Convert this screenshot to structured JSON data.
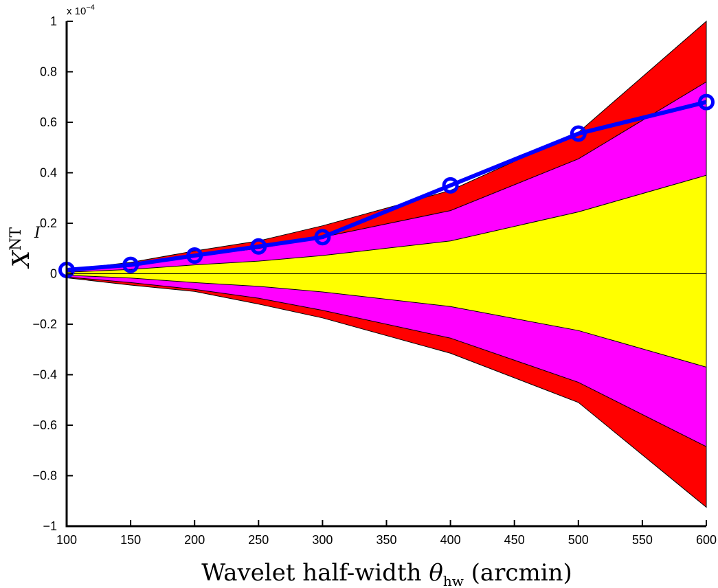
{
  "chart_data": {
    "type": "area",
    "title": "",
    "xlabel_main": "Wavelet half-width ",
    "xlabel_symbol": "θ",
    "xlabel_subscript": "hw",
    "xlabel_units": " (arcmin)",
    "ylabel_symbol": "X",
    "ylabel_superscript": "NT",
    "ylabel_subscript": "I",
    "y_multiplier_base": "x 10",
    "y_multiplier_exp": "−4",
    "xlim": [
      100,
      600
    ],
    "ylim": [
      -1.0,
      1.0
    ],
    "x_ticks": [
      100,
      150,
      200,
      250,
      300,
      350,
      400,
      450,
      500,
      550,
      600
    ],
    "x_tick_labels": [
      "100",
      "150",
      "200",
      "250",
      "300",
      "350",
      "400",
      "450",
      "500",
      "550",
      "600"
    ],
    "y_ticks": [
      -1.0,
      -0.8,
      -0.6,
      -0.4,
      -0.2,
      0,
      0.2,
      0.4,
      0.6,
      0.8,
      1.0
    ],
    "y_tick_labels": [
      "−1",
      "−0.8",
      "−0.6",
      "−0.4",
      "−0.2",
      "0",
      "0.2",
      "0.4",
      "0.6",
      "0.8",
      "1"
    ],
    "grid": false,
    "x": [
      100,
      150,
      200,
      250,
      300,
      400,
      500,
      600
    ],
    "bands": [
      {
        "color": "#ff0000",
        "upper": [
          0.016,
          0.045,
          0.09,
          0.13,
          0.19,
          0.33,
          0.56,
          1.0
        ],
        "lower": [
          -0.016,
          -0.045,
          -0.07,
          -0.12,
          -0.175,
          -0.315,
          -0.51,
          -0.925
        ]
      },
      {
        "color": "#ff00ff",
        "upper": [
          0.013,
          0.035,
          0.07,
          0.1,
          0.145,
          0.25,
          0.455,
          0.76
        ],
        "lower": [
          -0.013,
          -0.035,
          -0.062,
          -0.097,
          -0.145,
          -0.255,
          -0.43,
          -0.685
        ]
      },
      {
        "color": "#ffff00",
        "upper": [
          0.006,
          0.017,
          0.035,
          0.05,
          0.072,
          0.13,
          0.245,
          0.39
        ],
        "lower": [
          -0.006,
          -0.017,
          -0.035,
          -0.05,
          -0.072,
          -0.13,
          -0.225,
          -0.37
        ]
      }
    ],
    "series": [
      {
        "color": "#0000ff",
        "marker": "circle",
        "values": [
          0.015,
          0.035,
          0.072,
          0.108,
          0.145,
          0.35,
          0.555,
          0.68
        ]
      }
    ]
  }
}
